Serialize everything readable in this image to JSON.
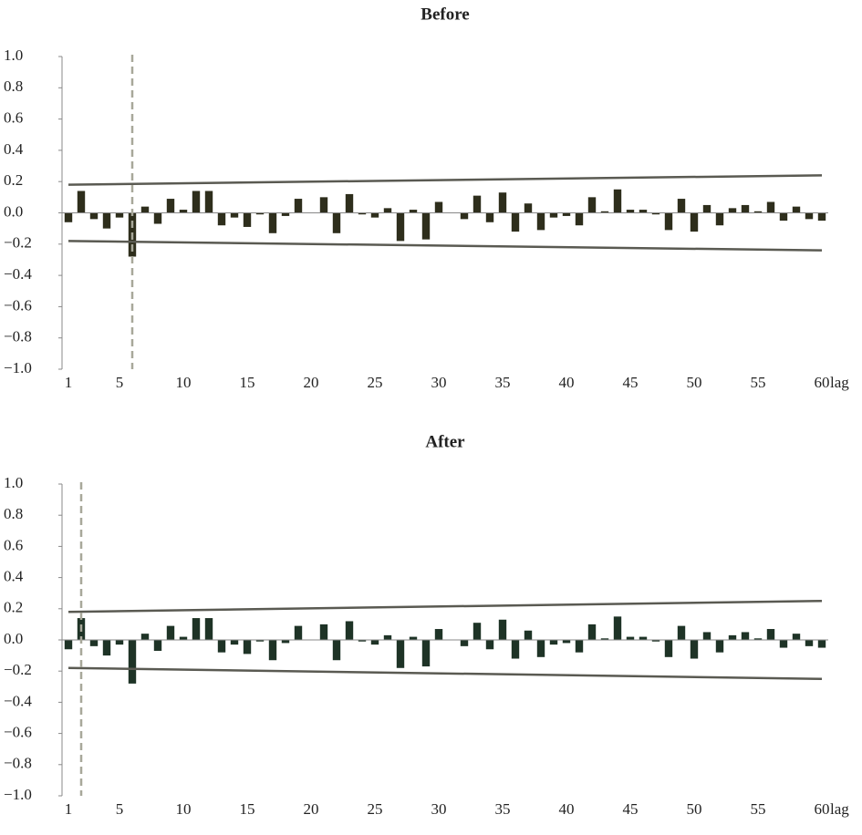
{
  "chart_data": [
    {
      "type": "bar",
      "title": "Before",
      "xlabel": "lag",
      "x": [
        1,
        2,
        3,
        4,
        5,
        6,
        7,
        8,
        9,
        10,
        11,
        12,
        13,
        14,
        15,
        16,
        17,
        18,
        19,
        20,
        21,
        22,
        23,
        24,
        25,
        26,
        27,
        28,
        29,
        30,
        31,
        32,
        33,
        34,
        35,
        36,
        37,
        38,
        39,
        40,
        41,
        42,
        43,
        44,
        45,
        46,
        47,
        48,
        49,
        50,
        51,
        52,
        53,
        54,
        55,
        56,
        57,
        58,
        59,
        60
      ],
      "values": [
        -0.06,
        0.14,
        -0.04,
        -0.1,
        -0.03,
        -0.28,
        0.04,
        -0.07,
        0.09,
        0.02,
        0.14,
        0.14,
        -0.08,
        -0.03,
        -0.09,
        -0.01,
        -0.13,
        -0.02,
        0.09,
        0.0,
        0.1,
        -0.13,
        0.12,
        -0.01,
        -0.03,
        0.03,
        -0.18,
        0.02,
        -0.17,
        0.07,
        0.0,
        -0.04,
        0.11,
        -0.06,
        0.13,
        -0.12,
        0.06,
        -0.11,
        -0.03,
        -0.02,
        -0.08,
        0.1,
        0.01,
        0.15,
        0.02,
        0.02,
        -0.01,
        -0.11,
        0.09,
        -0.12,
        0.05,
        -0.08,
        0.03,
        0.05,
        0.01,
        0.07,
        -0.05,
        0.04,
        -0.04,
        -0.05
      ],
      "color": "#2e2e1c",
      "xlim": [
        0.5,
        60.5
      ],
      "xticks": [
        1,
        5,
        10,
        15,
        20,
        25,
        30,
        35,
        40,
        45,
        50,
        55,
        60
      ],
      "ylim": [
        -1,
        1
      ],
      "yticks": [
        {
          "value": -1,
          "label": "−1.0"
        },
        {
          "value": -0.8,
          "label": "−0.8"
        },
        {
          "value": -0.6,
          "label": "−0.6"
        },
        {
          "value": -0.4,
          "label": "−0.4"
        },
        {
          "value": -0.2,
          "label": "−0.2"
        },
        {
          "value": 0,
          "label": "0.0"
        },
        0.2,
        0.4,
        0.6,
        0.8,
        {
          "value": 1,
          "label": "1.0"
        }
      ],
      "bounds": [
        {
          "x": [
            1,
            60
          ],
          "values": [
            0.18,
            0.24
          ],
          "color": "#5a5a52"
        },
        {
          "x": [
            1,
            60
          ],
          "values": [
            -0.18,
            -0.24
          ],
          "color": "#5a5a52"
        }
      ],
      "marker_lag": 6,
      "marker_color": "#a8a89a"
    },
    {
      "type": "bar",
      "title": "After",
      "xlabel": "lag",
      "x": [
        1,
        2,
        3,
        4,
        5,
        6,
        7,
        8,
        9,
        10,
        11,
        12,
        13,
        14,
        15,
        16,
        17,
        18,
        19,
        20,
        21,
        22,
        23,
        24,
        25,
        26,
        27,
        28,
        29,
        30,
        31,
        32,
        33,
        34,
        35,
        36,
        37,
        38,
        39,
        40,
        41,
        42,
        43,
        44,
        45,
        46,
        47,
        48,
        49,
        50,
        51,
        52,
        53,
        54,
        55,
        56,
        57,
        58,
        59,
        60
      ],
      "values": [
        -0.06,
        0.14,
        -0.04,
        -0.1,
        -0.03,
        -0.28,
        0.04,
        -0.07,
        0.09,
        0.02,
        0.14,
        0.14,
        -0.08,
        -0.03,
        -0.09,
        -0.01,
        -0.13,
        -0.02,
        0.09,
        0.0,
        0.1,
        -0.13,
        0.12,
        -0.01,
        -0.03,
        0.03,
        -0.18,
        0.02,
        -0.17,
        0.07,
        0.0,
        -0.04,
        0.11,
        -0.06,
        0.13,
        -0.12,
        0.06,
        -0.11,
        -0.03,
        -0.02,
        -0.08,
        0.1,
        0.01,
        0.15,
        0.02,
        0.02,
        -0.01,
        -0.11,
        0.09,
        -0.12,
        0.05,
        -0.08,
        0.03,
        0.05,
        0.01,
        0.07,
        -0.05,
        0.04,
        -0.04,
        -0.05
      ],
      "color": "#1e3326",
      "xlim": [
        0.5,
        60.5
      ],
      "xticks": [
        1,
        5,
        10,
        15,
        20,
        25,
        30,
        35,
        40,
        45,
        50,
        55,
        60
      ],
      "ylim": [
        -1,
        1
      ],
      "yticks": [
        {
          "value": -1,
          "label": "−1.0"
        },
        {
          "value": -0.8,
          "label": "−0.8"
        },
        {
          "value": -0.6,
          "label": "−0.6"
        },
        {
          "value": -0.4,
          "label": "−0.4"
        },
        {
          "value": -0.2,
          "label": "−0.2"
        },
        {
          "value": 0,
          "label": "0.0"
        },
        0.2,
        0.4,
        0.6,
        0.8,
        {
          "value": 1,
          "label": "1.0"
        }
      ],
      "bounds": [
        {
          "x": [
            1,
            60
          ],
          "values": [
            0.18,
            0.25
          ],
          "color": "#5a5a52"
        },
        {
          "x": [
            1,
            60
          ],
          "values": [
            -0.18,
            -0.25
          ],
          "color": "#5a5a52"
        }
      ],
      "marker_lag": 2,
      "marker_color": "#a8a89a"
    }
  ]
}
